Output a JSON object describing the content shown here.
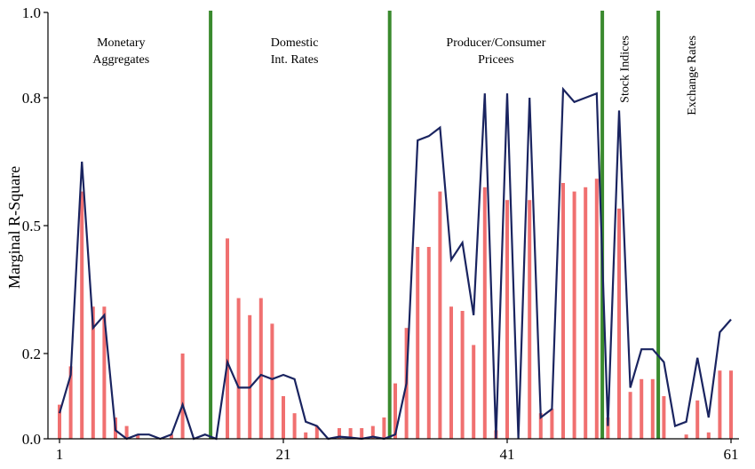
{
  "chart_data": {
    "type": "bar",
    "ylabel": "Marginal R-Square",
    "xlim": [
      1,
      61
    ],
    "ylim": [
      0,
      1.0
    ],
    "x_ticks": [
      1,
      21,
      41,
      61
    ],
    "y_ticks": [
      0.0,
      0.2,
      0.5,
      0.8,
      1.0
    ],
    "y_tick_labels": [
      "0.0",
      "0.2",
      "0.5",
      "0.8",
      "1.0"
    ],
    "series": [
      {
        "kind": "bar",
        "color": "#f07070",
        "x": [
          1,
          2,
          3,
          4,
          5,
          6,
          7,
          8,
          9,
          10,
          11,
          12,
          13,
          14,
          15,
          16,
          17,
          18,
          19,
          20,
          21,
          22,
          23,
          24,
          25,
          26,
          27,
          28,
          29,
          30,
          31,
          32,
          33,
          34,
          35,
          36,
          37,
          38,
          39,
          40,
          41,
          42,
          43,
          44,
          45,
          46,
          47,
          48,
          49,
          50,
          51,
          52,
          53,
          54,
          55,
          56,
          57,
          58,
          59,
          60,
          61
        ],
        "values": [
          0.08,
          0.17,
          0.58,
          0.31,
          0.31,
          0.05,
          0.03,
          0.01,
          0.0,
          0.0,
          0.01,
          0.2,
          0.0,
          0.0,
          0.0,
          0.47,
          0.33,
          0.29,
          0.33,
          0.27,
          0.1,
          0.06,
          0.015,
          0.03,
          0.0,
          0.025,
          0.025,
          0.025,
          0.03,
          0.05,
          0.13,
          0.26,
          0.45,
          0.45,
          0.58,
          0.31,
          0.3,
          0.22,
          0.59,
          0.02,
          0.56,
          0.0,
          0.56,
          0.06,
          0.07,
          0.6,
          0.58,
          0.59,
          0.61,
          0.05,
          0.54,
          0.11,
          0.14,
          0.14,
          0.1,
          0.0,
          0.01,
          0.09,
          0.015,
          0.16,
          0.16
        ]
      },
      {
        "kind": "line",
        "color": "#1a2460",
        "x": [
          1,
          2,
          3,
          4,
          5,
          6,
          7,
          8,
          9,
          10,
          11,
          12,
          13,
          14,
          15,
          16,
          17,
          18,
          19,
          20,
          21,
          22,
          23,
          24,
          25,
          26,
          27,
          28,
          29,
          30,
          31,
          32,
          33,
          34,
          35,
          36,
          37,
          38,
          39,
          40,
          41,
          42,
          43,
          44,
          45,
          46,
          47,
          48,
          49,
          50,
          51,
          52,
          53,
          54,
          55,
          56,
          57,
          58,
          59,
          60,
          61
        ],
        "values": [
          0.06,
          0.15,
          0.65,
          0.26,
          0.29,
          0.02,
          0.0,
          0.01,
          0.01,
          0.0,
          0.01,
          0.08,
          0.0,
          0.01,
          0.0,
          0.18,
          0.12,
          0.12,
          0.15,
          0.14,
          0.15,
          0.14,
          0.04,
          0.03,
          0.0,
          0.005,
          0.003,
          0.0,
          0.005,
          0.0,
          0.01,
          0.13,
          0.7,
          0.71,
          0.73,
          0.42,
          0.46,
          0.29,
          0.81,
          0.0,
          0.81,
          0.0,
          0.8,
          0.05,
          0.07,
          0.82,
          0.79,
          0.8,
          0.81,
          0.03,
          0.77,
          0.12,
          0.21,
          0.21,
          0.18,
          0.03,
          0.04,
          0.19,
          0.05,
          0.25,
          0.28
        ]
      }
    ],
    "dividers": [
      14,
      30,
      49,
      54
    ],
    "groups": [
      {
        "lines": [
          "Monetary",
          "Aggregates"
        ],
        "x": 6.5,
        "orientation": "horizontal"
      },
      {
        "lines": [
          "Domestic",
          "Int. Rates"
        ],
        "x": 22,
        "orientation": "horizontal"
      },
      {
        "lines": [
          "Producer/Consumer",
          "Pricees"
        ],
        "x": 40,
        "orientation": "horizontal"
      },
      {
        "lines": [
          "Stock Indices"
        ],
        "x": 51.5,
        "orientation": "vertical"
      },
      {
        "lines": [
          "Exchange Rates"
        ],
        "x": 57.5,
        "orientation": "vertical"
      }
    ],
    "divider_color": "#3a8a2e"
  }
}
